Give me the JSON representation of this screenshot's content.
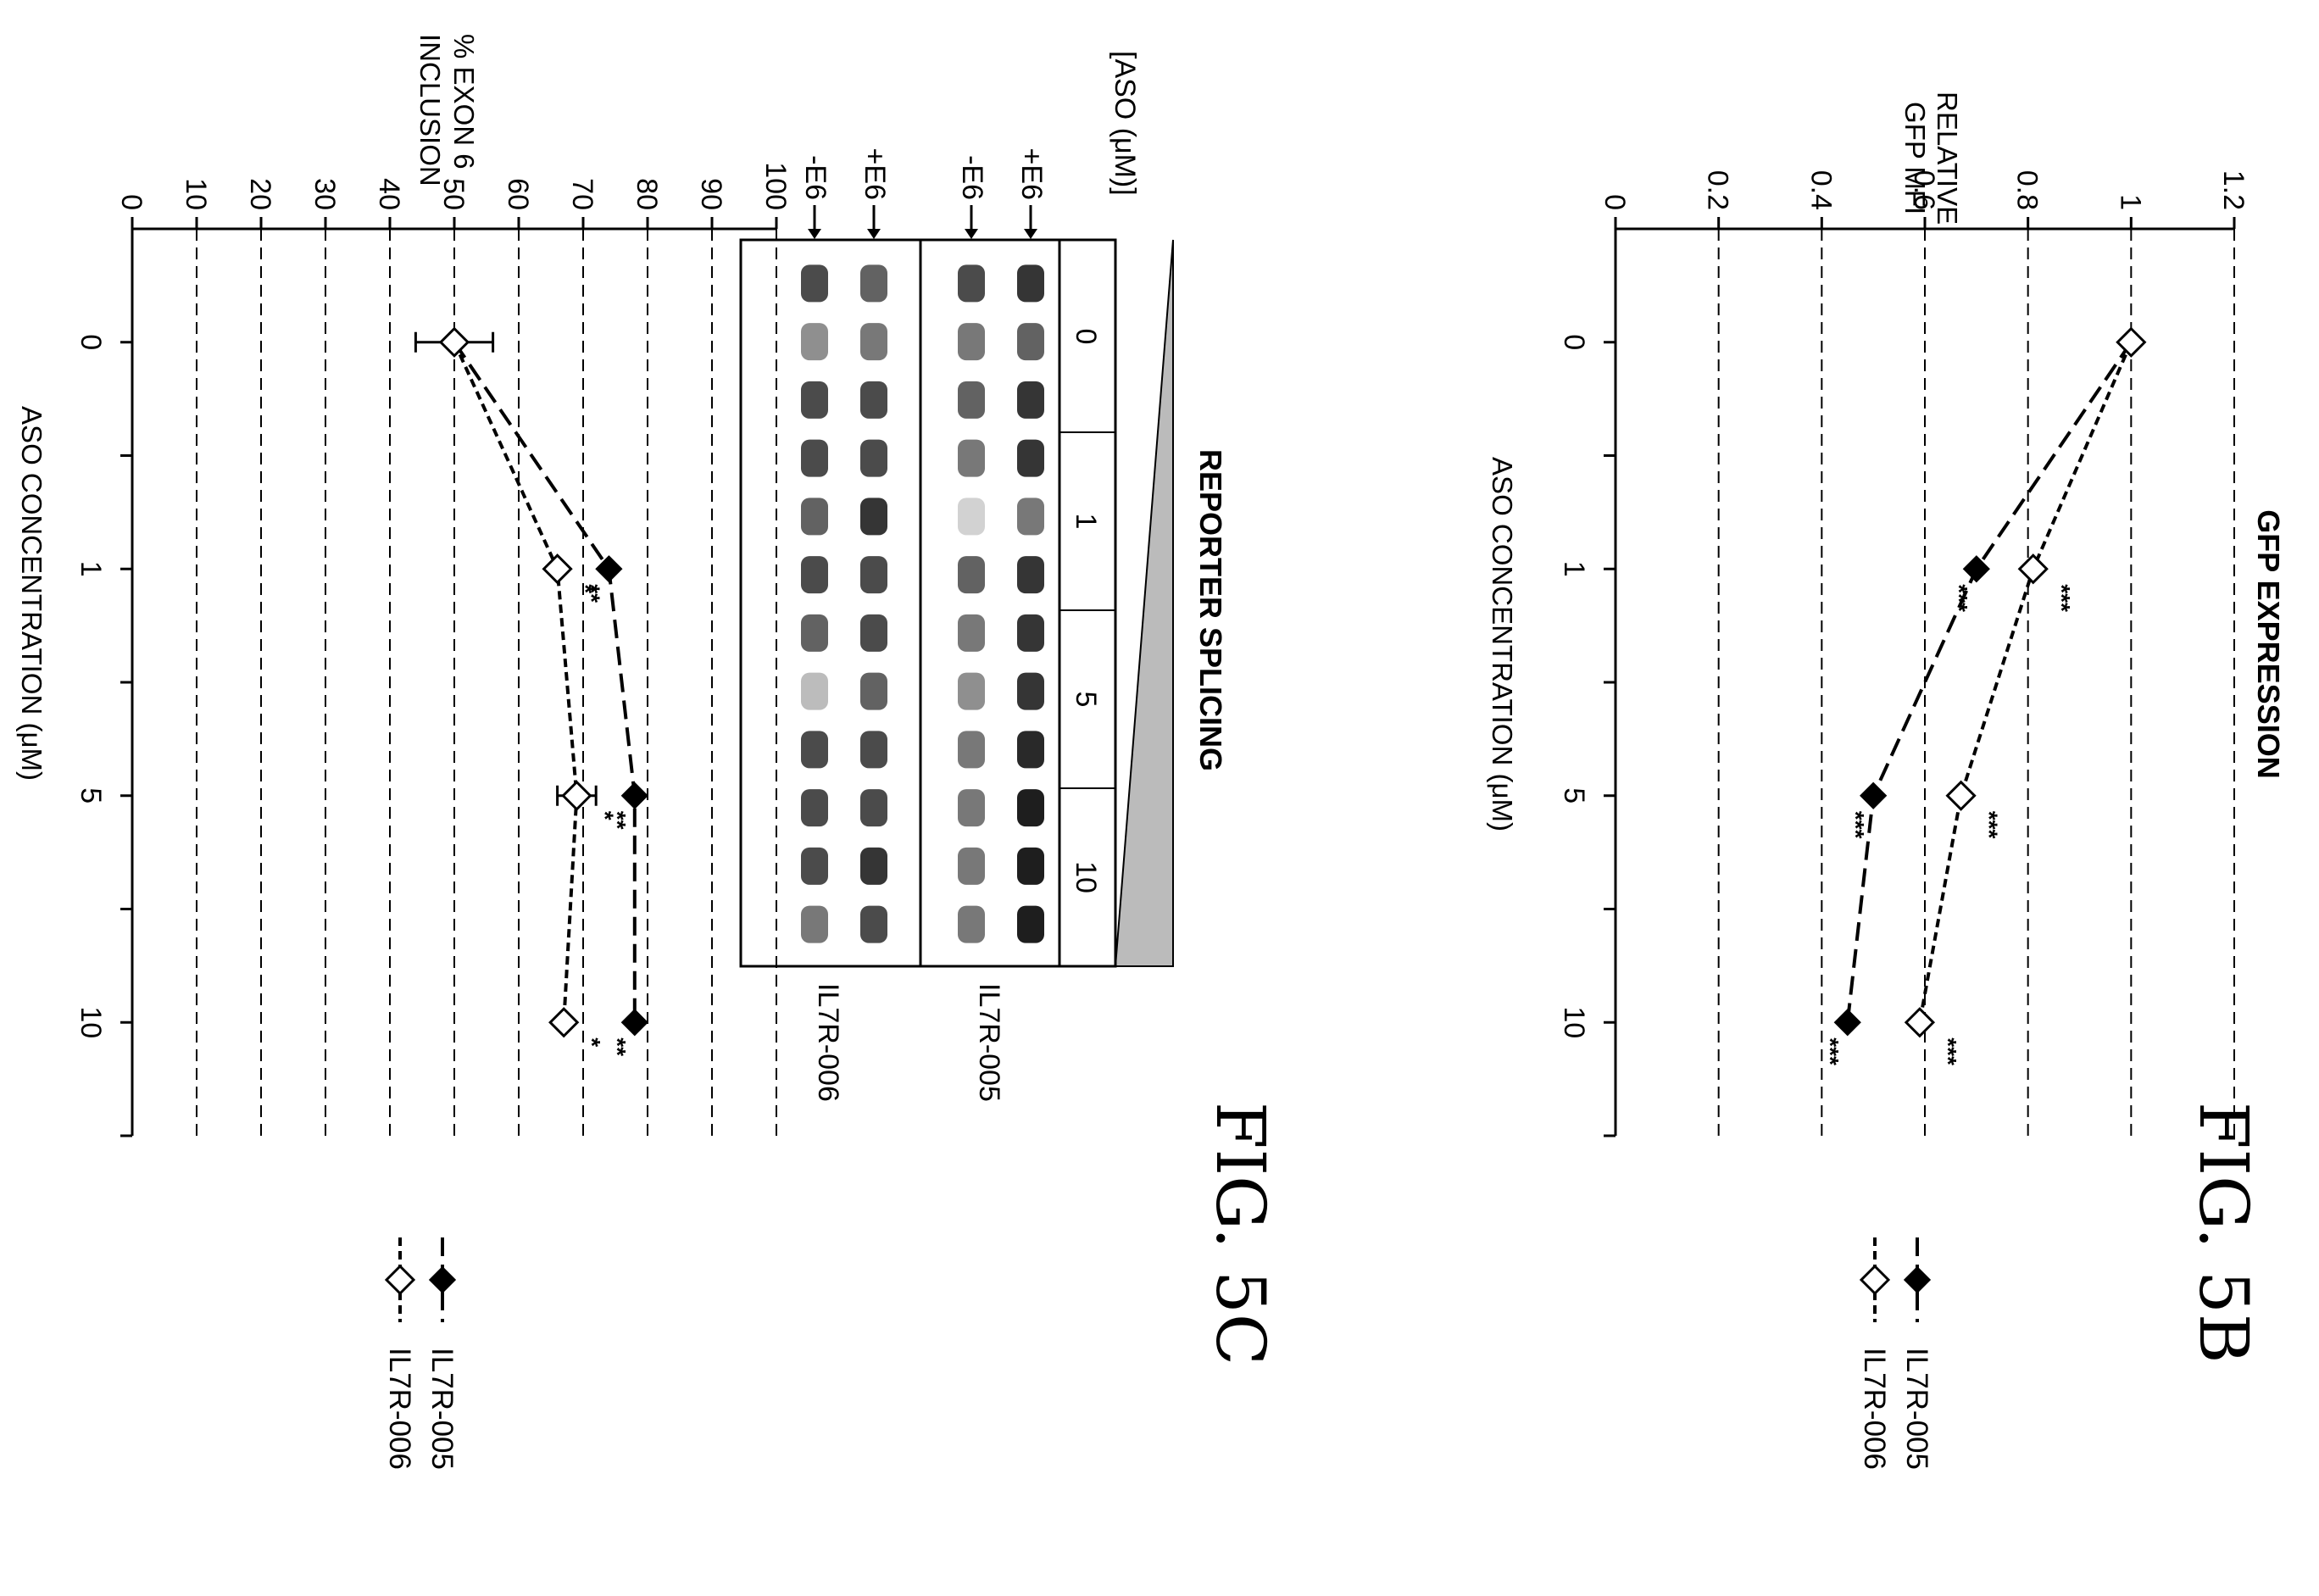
{
  "chart_data": [
    {
      "type": "line",
      "figure_label": "FIG. 5B",
      "title": "GFP EXPRESSION",
      "xlabel": "ASO CONCENTRATION (μM)",
      "ylabel": [
        "RELATIVE",
        "GFP MFI"
      ],
      "categories": [
        "0",
        "1",
        "5",
        "10"
      ],
      "y_ticks": [
        "0",
        "0.2",
        "0.4",
        "0.6",
        "0.8",
        "1",
        "1.2"
      ],
      "ylim": [
        0,
        1.2
      ],
      "grid": true,
      "series": [
        {
          "name": "IL7R-005",
          "marker": "filled-diamond",
          "line": "long-dash",
          "values": [
            1.0,
            0.7,
            0.5,
            0.45
          ],
          "annotations": [
            "",
            "***",
            "***",
            "***"
          ]
        },
        {
          "name": "IL7R-006",
          "marker": "open-diamond",
          "line": "short-dash",
          "values": [
            1.0,
            0.81,
            0.67,
            0.59
          ],
          "annotations": [
            "",
            "***",
            "***",
            "***"
          ]
        }
      ]
    },
    {
      "type": "line",
      "figure_label": "FIG. 5C",
      "title": "",
      "xlabel": "ASO CONCENTRATION (μM)",
      "ylabel": [
        "% EXON 6",
        "INCLUSION"
      ],
      "categories": [
        "0",
        "1",
        "5",
        "10"
      ],
      "y_ticks": [
        "0",
        "10",
        "20",
        "30",
        "40",
        "50",
        "60",
        "70",
        "80",
        "90",
        "100"
      ],
      "ylim": [
        0,
        100
      ],
      "grid": true,
      "series": [
        {
          "name": "IL7R-005",
          "marker": "filled-diamond",
          "line": "long-dash",
          "values": [
            50,
            74,
            78,
            78
          ],
          "annotations": [
            "",
            "**",
            "**",
            "**"
          ]
        },
        {
          "name": "IL7R-006",
          "marker": "open-diamond",
          "line": "short-dash",
          "values": [
            50,
            66,
            69,
            67
          ],
          "error": [
            6,
            0,
            3,
            0
          ],
          "annotations": [
            "",
            "*",
            "*",
            "*"
          ]
        }
      ]
    }
  ],
  "gel": {
    "title": "REPORTER SPLICING",
    "aso_label": "[ASO (μM)]",
    "concentrations": [
      "0",
      "1",
      "5",
      "10"
    ],
    "band_labels": [
      "+E6",
      "-E6",
      "+E6",
      "-E6"
    ],
    "row_labels": [
      "IL7R-005",
      "IL7R-006"
    ]
  }
}
